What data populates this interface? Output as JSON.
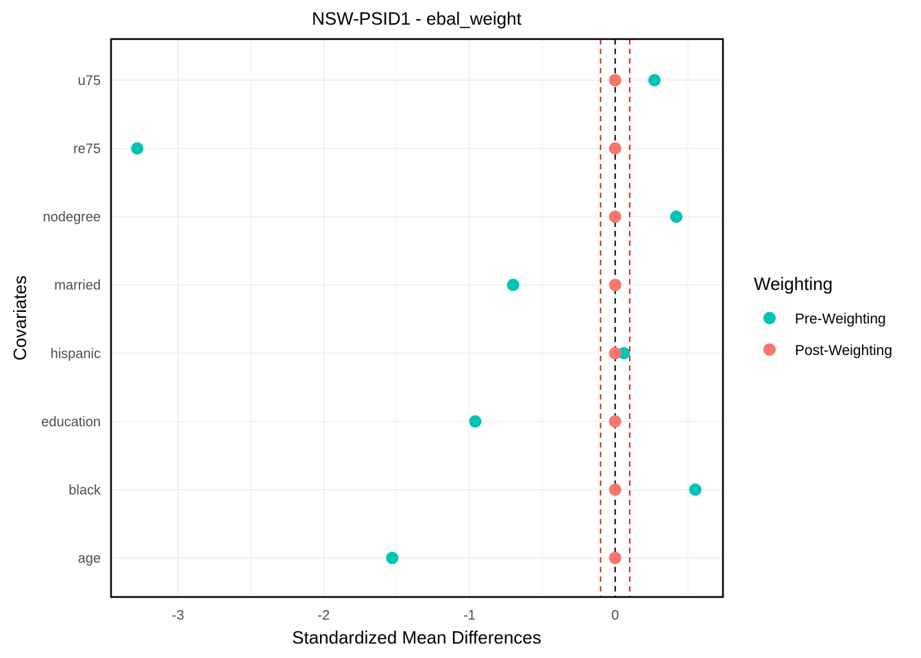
{
  "chart_data": {
    "type": "scatter",
    "title": "NSW-PSID1 - ebal_weight",
    "xlabel": "Standardized Mean Differences",
    "ylabel": "Covariates",
    "xlim": [
      -3.46,
      0.74
    ],
    "x_ticks": [
      -3,
      -2,
      -1,
      0
    ],
    "x_tick_labels": [
      "-3",
      "-2",
      "-1",
      "0"
    ],
    "categories": [
      "age",
      "black",
      "education",
      "hispanic",
      "married",
      "nodegree",
      "re75",
      "u75"
    ],
    "series": [
      {
        "name": "Pre-Weighting",
        "color": "#00C5B5",
        "values": [
          -1.53,
          0.55,
          -0.96,
          0.06,
          -0.7,
          0.42,
          -3.28,
          0.27
        ]
      },
      {
        "name": "Post-Weighting",
        "color": "#F8766D",
        "values": [
          0,
          0,
          0,
          0,
          0,
          0,
          0,
          0
        ]
      }
    ],
    "reference_lines": [
      {
        "x": 0,
        "color": "#000000",
        "style": "dashed"
      },
      {
        "x": -0.1,
        "color": "#E41A1C",
        "style": "dashed"
      },
      {
        "x": 0.1,
        "color": "#E41A1C",
        "style": "dashed"
      }
    ],
    "grid": true,
    "legend": {
      "title": "Weighting",
      "position": "right"
    }
  }
}
